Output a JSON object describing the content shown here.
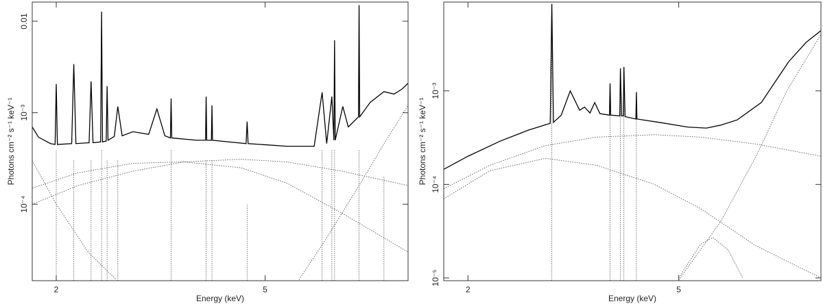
{
  "chart_data": [
    {
      "type": "line",
      "x_label": "Energy (keV)",
      "y_label": "Photons cm⁻² s⁻¹ keV⁻¹",
      "x_log": true,
      "y_log": true,
      "xlim": [
        1.8,
        9.36
      ],
      "ylim": [
        1.46e-05,
        0.0162
      ],
      "xticks": [
        2,
        5
      ],
      "yticks": [
        {
          "value": 0.0001,
          "label": "10⁻⁴"
        },
        {
          "value": 0.001,
          "label": "10⁻³"
        },
        0.01
      ],
      "series": [
        {
          "color": "#000000",
          "line_style": "solid",
          "x": [
            1.8,
            1.85,
            1.95,
            1.99,
            2.0,
            2.01,
            2.14,
            2.16,
            2.18,
            2.31,
            2.33,
            2.35,
            2.43,
            2.44,
            2.45,
            2.49,
            2.5,
            2.51,
            2.58,
            2.62,
            2.67,
            2.8,
            3.0,
            3.11,
            3.22,
            3.3,
            3.31,
            3.32,
            3.7,
            3.85,
            3.86,
            3.87,
            3.95,
            3.96,
            3.97,
            4.6,
            4.62,
            4.64,
            5.5,
            6.2,
            6.42,
            6.55,
            6.7,
            6.76,
            6.78,
            6.8,
            7.03,
            7.2,
            7.53,
            7.55,
            7.57,
            7.93,
            8.42,
            8.8,
            9.1,
            9.36
          ],
          "values": [
            0.0007,
            0.00054,
            0.00046,
            0.00045,
            0.00206,
            0.00045,
            0.00046,
            0.0034,
            0.00046,
            0.00047,
            0.0022,
            0.00047,
            0.00048,
            0.0127,
            0.00048,
            0.00049,
            0.00195,
            0.0005,
            0.00055,
            0.00117,
            0.00056,
            0.00062,
            0.00058,
            0.0011,
            0.00056,
            0.00053,
            0.00143,
            0.00053,
            0.0005,
            0.0005,
            0.0015,
            0.0005,
            0.0005,
            0.0012,
            0.0005,
            0.00046,
            0.0008,
            0.00046,
            0.00043,
            0.00043,
            0.00167,
            0.00046,
            0.0015,
            0.0005,
            0.0062,
            0.0005,
            0.00117,
            0.0007,
            0.0009,
            0.015,
            0.0009,
            0.0013,
            0.0017,
            0.0016,
            0.0018,
            0.0021
          ]
        },
        {
          "color": "#555555",
          "line_style": "dotted",
          "x": [
            1.8,
            2.2,
            2.8,
            3.5,
            4.5,
            5.5,
            7,
            9.36
          ],
          "values": [
            0.0001,
            0.00016,
            0.00023,
            0.00029,
            0.00031,
            0.00029,
            0.00023,
            0.00016
          ]
        },
        {
          "color": "#555555",
          "line_style": "dotted",
          "x": [
            1.8,
            2.2,
            2.8,
            3.5,
            4.5,
            5.5,
            7,
            9.36
          ],
          "values": [
            0.00015,
            0.00022,
            0.00028,
            0.00029,
            0.00025,
            0.00017,
            8e-05,
            3e-05
          ]
        },
        {
          "color": "#555555",
          "line_style": "dotted",
          "x": [
            5.8,
            6.5,
            7.5,
            8.5,
            9.36
          ],
          "values": [
            1.5e-05,
            4e-05,
            0.00015,
            0.0005,
            0.0012
          ]
        },
        {
          "color": "#555555",
          "line_style": "dotted",
          "x": [
            1.8,
            2.0,
            2.3,
            2.6
          ],
          "values": [
            0.0003,
            0.0001,
            3e-05,
            1.5e-05
          ]
        }
      ],
      "emission_lines": {
        "color": "#555555",
        "x": [
          2.0,
          2.16,
          2.33,
          2.44,
          2.5,
          2.62,
          3.31,
          3.86,
          3.96,
          4.62,
          6.42,
          6.7,
          6.78,
          7.55,
          8.42
        ],
        "values": [
          0.0004,
          0.0003,
          0.0003,
          0.0004,
          0.0003,
          0.0003,
          0.0004,
          0.0003,
          0.0003,
          0.0001,
          0.0004,
          0.0004,
          0.0004,
          0.0004,
          0.0002
        ]
      }
    },
    {
      "type": "line",
      "x_label": "Energy (keV)",
      "y_label": "Photons cm⁻² s⁻¹ keV⁻¹",
      "x_log": true,
      "y_log": true,
      "xlim": [
        1.8,
        9.28
      ],
      "ylim": [
        9.35e-06,
        0.0089
      ],
      "xticks": [
        2,
        5
      ],
      "yticks": [
        {
          "value": 1e-05,
          "label": "10⁻⁵"
        },
        {
          "value": 0.0001,
          "label": "10⁻⁴"
        },
        {
          "value": 0.001,
          "label": "10⁻³"
        }
      ],
      "series": [
        {
          "color": "#000000",
          "line_style": "solid",
          "x": [
            1.8,
            2.0,
            2.3,
            2.6,
            2.86,
            2.88,
            2.9,
            3.0,
            3.12,
            3.25,
            3.32,
            3.4,
            3.47,
            3.55,
            3.7,
            3.71,
            3.72,
            3.87,
            3.88,
            3.9,
            3.93,
            3.94,
            3.96,
            4.15,
            4.16,
            4.17,
            4.6,
            5.2,
            5.64,
            6.0,
            6.45,
            7.16,
            8.07,
            8.7,
            9.28
          ],
          "values": [
            0.000145,
            0.0002,
            0.00029,
            0.00038,
            0.00045,
            0.0085,
            0.00046,
            0.00055,
            0.001,
            0.00062,
            0.00067,
            0.00058,
            0.00075,
            0.00057,
            0.00055,
            0.0012,
            0.00055,
            0.00054,
            0.00174,
            0.00054,
            0.00054,
            0.0018,
            0.00053,
            0.0005,
            0.00097,
            0.0005,
            0.00046,
            0.00041,
            0.0004,
            0.00043,
            0.00049,
            0.00075,
            0.00206,
            0.0033,
            0.0044
          ]
        },
        {
          "color": "#555555",
          "line_style": "dotted",
          "x": [
            1.8,
            2.2,
            2.8,
            3.5,
            4.5,
            5.5,
            7,
            9.28
          ],
          "values": [
            9e-05,
            0.00016,
            0.00026,
            0.00032,
            0.00034,
            0.00032,
            0.00027,
            0.0002
          ]
        },
        {
          "color": "#555555",
          "line_style": "dotted",
          "x": [
            1.8,
            2.2,
            2.8,
            3.5,
            4.5,
            5.5,
            7,
            9.28
          ],
          "values": [
            7e-05,
            0.00014,
            0.00019,
            0.00016,
            0.0001,
            5.5e-05,
            2.2e-05,
            1e-05
          ]
        },
        {
          "color": "#555555",
          "line_style": "dotted",
          "x": [
            5.0,
            6.0,
            7.0,
            8.0,
            9.28
          ],
          "values": [
            9.5e-06,
            4e-05,
            0.0002,
            0.001,
            0.004
          ]
        },
        {
          "color": "#555555",
          "line_style": "dotted",
          "x": [
            5.0,
            5.5,
            5.8,
            6.2,
            6.6
          ],
          "values": [
            1e-05,
            2.3e-05,
            2.7e-05,
            2e-05,
            1e-05
          ]
        }
      ],
      "emission_lines": {
        "color": "#555555",
        "x": [
          2.88,
          3.71,
          3.88,
          3.94,
          4.16
        ],
        "values": [
          0.0085,
          0.0012,
          0.00174,
          0.0018,
          0.00097
        ]
      }
    }
  ]
}
